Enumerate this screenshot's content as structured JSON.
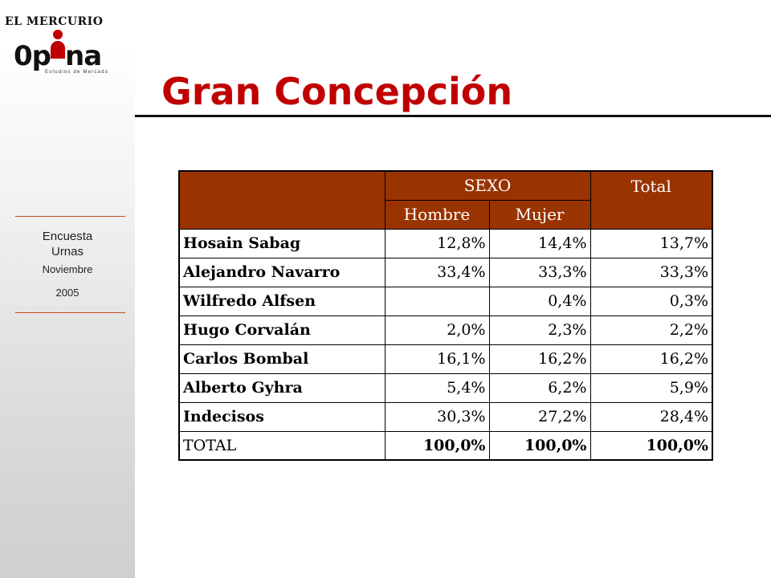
{
  "brand": {
    "newspaper": "EL MERCURIO",
    "logo_text_start": "0p",
    "logo_text_end": "na",
    "logo_tagline": "Estudios de Mercado"
  },
  "sidebar": {
    "line1": "Encuesta",
    "line2": "Urnas",
    "line3": "Noviembre",
    "line4": "2005"
  },
  "slide": {
    "title": "Gran Concepción"
  },
  "table": {
    "group_header": "SEXO",
    "total_header": "Total",
    "col_hombre": "Hombre",
    "col_mujer": "Mujer",
    "rows": [
      {
        "name": "Hosain Sabag",
        "hombre": "12,8%",
        "mujer": "14,4%",
        "total": "13,7%"
      },
      {
        "name": "Alejandro Navarro",
        "hombre": "33,4%",
        "mujer": "33,3%",
        "total": "33,3%"
      },
      {
        "name": "Wilfredo Alfsen",
        "hombre": "",
        "mujer": "0,4%",
        "total": "0,3%"
      },
      {
        "name": "Hugo Corvalán",
        "hombre": "2,0%",
        "mujer": "2,3%",
        "total": "2,2%"
      },
      {
        "name": "Carlos Bombal",
        "hombre": "16,1%",
        "mujer": "16,2%",
        "total": "16,2%"
      },
      {
        "name": "Alberto Gyhra",
        "hombre": "5,4%",
        "mujer": "6,2%",
        "total": "5,9%"
      },
      {
        "name": "Indecisos",
        "hombre": "30,3%",
        "mujer": "27,2%",
        "total": "28,4%"
      },
      {
        "name": "TOTAL",
        "hombre": "100,0%",
        "mujer": "100,0%",
        "total": "100,0%"
      }
    ]
  },
  "colors": {
    "title": "#c00000",
    "header_bg": "#993300",
    "rule": "#c24a1e"
  }
}
